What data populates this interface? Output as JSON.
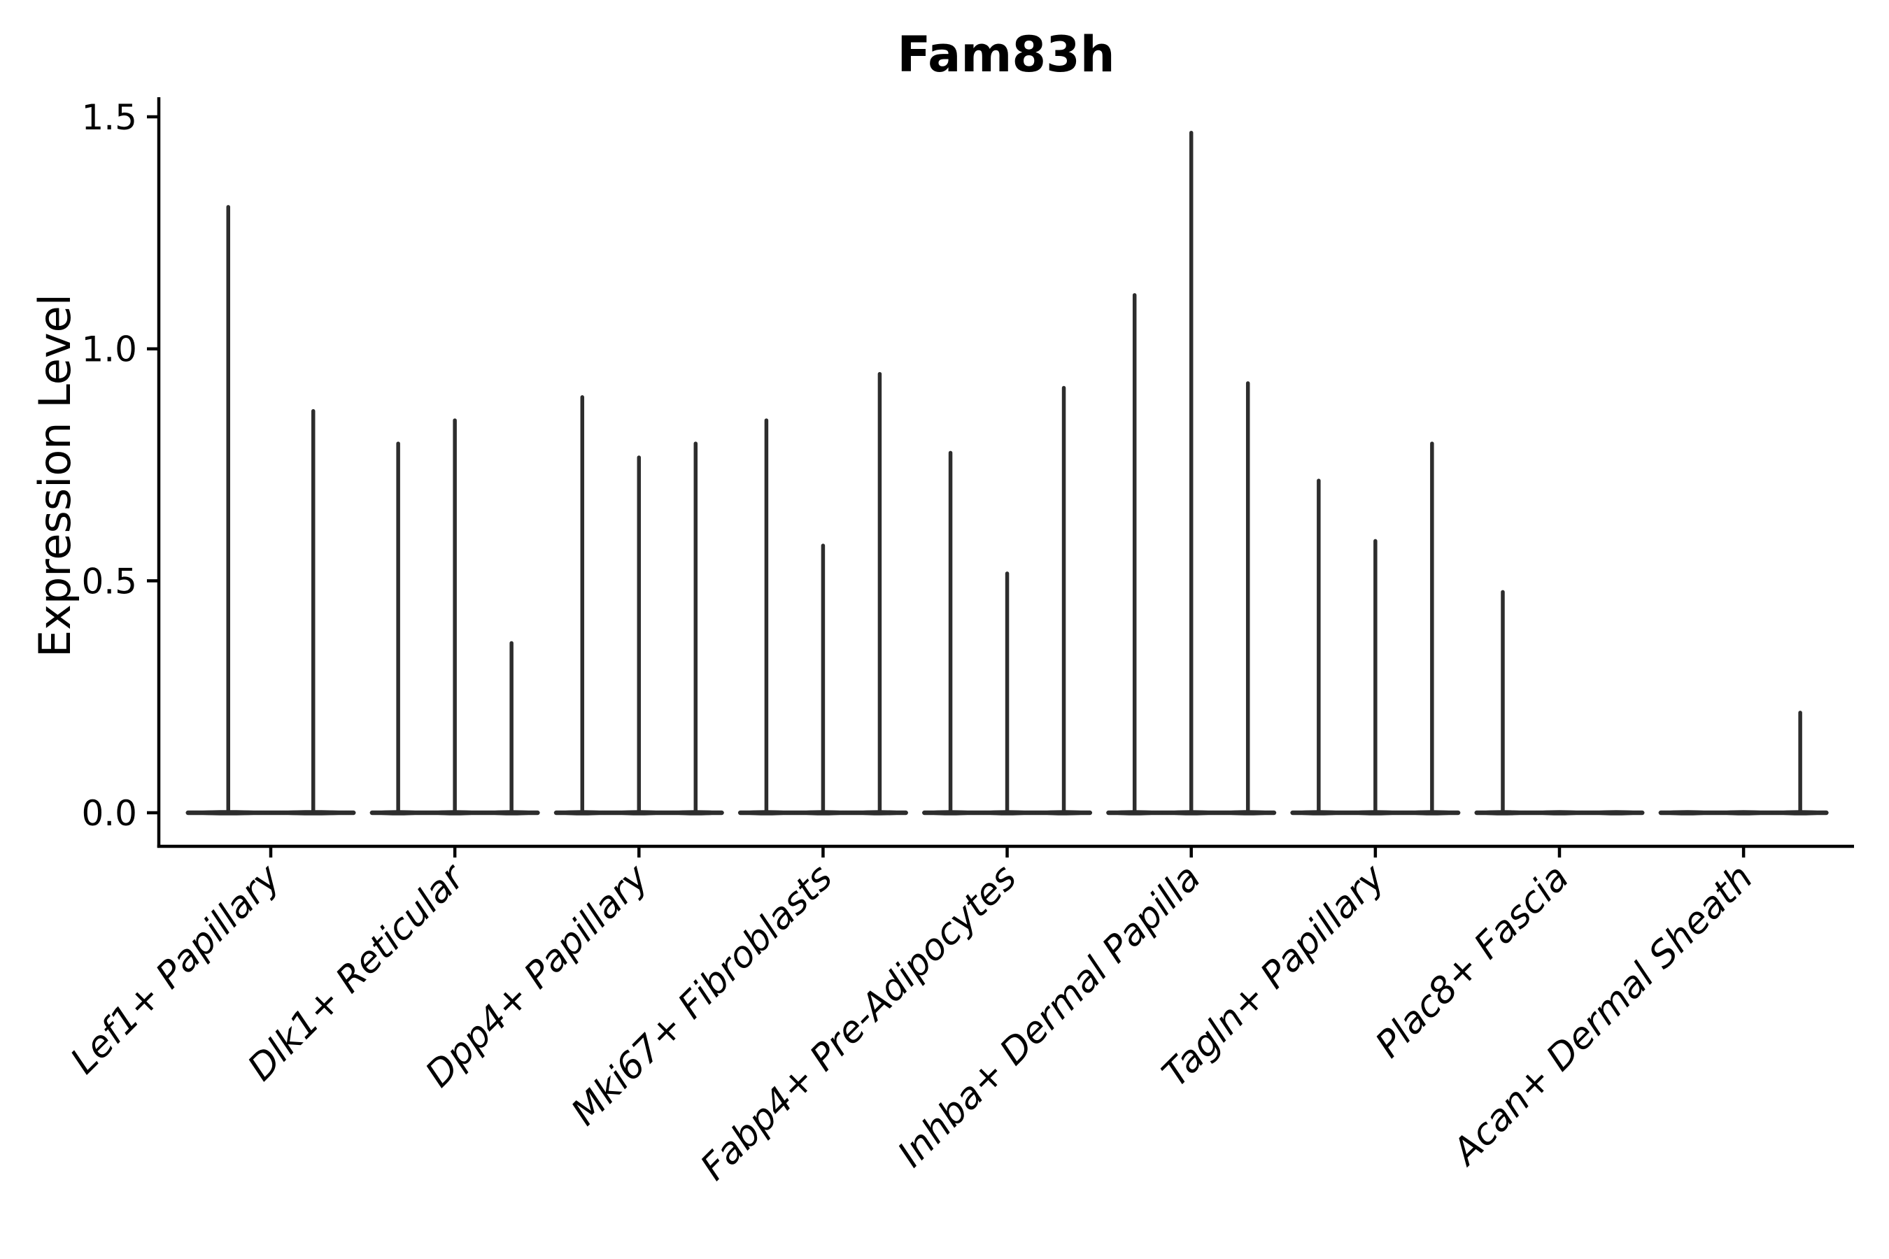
{
  "page": {
    "background_color": "#ffffff",
    "ink_color": "#2d2d2d",
    "axis_color": "#000000"
  },
  "chart_data": {
    "type": "violin",
    "title": "Fam83h",
    "xlabel": "",
    "ylabel": "Expression Level",
    "ylim": [
      -0.07,
      1.54
    ],
    "grid": false,
    "legend": null,
    "yticks": {
      "values": [
        0.0,
        0.5,
        1.0,
        1.5
      ],
      "labels": [
        "0.0",
        "0.5",
        "1.0",
        "1.5"
      ]
    },
    "x_tick_label_rotation_deg": 45,
    "x_tick_label_style": "italic",
    "violin_description": "Each category shows 2-3 thin spike violins (sparse single-cell expression): wide flat base at 0 plus a thin vertical line up to the max expression value; zero entries render as base only.",
    "categories": [
      {
        "label": "Lef1+ Papillary",
        "violin_maxima": [
          1.31,
          0.87
        ]
      },
      {
        "label": "Dlk1+ Reticular",
        "violin_maxima": [
          0.8,
          0.85,
          0.37
        ]
      },
      {
        "label": "Dpp4+ Papillary",
        "violin_maxima": [
          0.9,
          0.77,
          0.8
        ]
      },
      {
        "label": "Mki67+ Fibroblasts",
        "violin_maxima": [
          0.85,
          0.58,
          0.95
        ]
      },
      {
        "label": "Fabp4+ Pre-Adipocytes",
        "violin_maxima": [
          0.78,
          0.52,
          0.92
        ]
      },
      {
        "label": "Inhba+ Dermal Papilla",
        "violin_maxima": [
          1.12,
          1.47,
          0.93
        ]
      },
      {
        "label": "Tagln+ Papillary",
        "violin_maxima": [
          0.72,
          0.59,
          0.8
        ]
      },
      {
        "label": "Plac8+ Fascia",
        "violin_maxima": [
          0.48,
          0,
          0
        ]
      },
      {
        "label": "Acan+ Dermal Sheath",
        "violin_maxima": [
          0,
          0,
          0.22
        ]
      }
    ]
  }
}
